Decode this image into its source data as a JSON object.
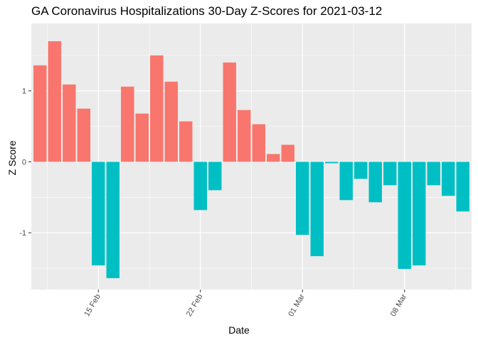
{
  "chart_data": {
    "type": "bar",
    "title": "GA Coronavirus Hospitalizations 30-Day Z-Scores for 2021-03-12",
    "xlabel": "Date",
    "ylabel": "Z Score",
    "x_tick_labels": [
      "15 Feb",
      "22 Feb",
      "01 Mar",
      "08 Mar"
    ],
    "x_tick_dates": [
      "2021-02-15",
      "2021-02-22",
      "2021-03-01",
      "2021-03-08"
    ],
    "y_ticks": [
      -1,
      0,
      1
    ],
    "ylim": [
      -1.8,
      1.95
    ],
    "grid": true,
    "legend": "none",
    "colors": {
      "positive": "#F8766D",
      "negative": "#00BFC4",
      "panel": "#EBEBEB",
      "grid": "#FFFFFF"
    },
    "categories": [
      "2021-02-11",
      "2021-02-12",
      "2021-02-13",
      "2021-02-14",
      "2021-02-15",
      "2021-02-16",
      "2021-02-17",
      "2021-02-18",
      "2021-02-19",
      "2021-02-20",
      "2021-02-21",
      "2021-02-22",
      "2021-02-23",
      "2021-02-24",
      "2021-02-25",
      "2021-02-26",
      "2021-02-27",
      "2021-02-28",
      "2021-03-01",
      "2021-03-02",
      "2021-03-03",
      "2021-03-04",
      "2021-03-05",
      "2021-03-06",
      "2021-03-07",
      "2021-03-08",
      "2021-03-09",
      "2021-03-10",
      "2021-03-11",
      "2021-03-12"
    ],
    "values": [
      1.36,
      1.7,
      1.09,
      0.75,
      -1.46,
      -1.64,
      1.06,
      0.68,
      1.5,
      1.13,
      0.57,
      -0.68,
      -0.4,
      1.4,
      0.73,
      0.53,
      0.11,
      0.24,
      -1.03,
      -1.33,
      -0.02,
      -0.54,
      -0.24,
      -0.57,
      -0.33,
      -1.51,
      -1.46,
      -0.33,
      -0.48,
      -0.7
    ]
  }
}
